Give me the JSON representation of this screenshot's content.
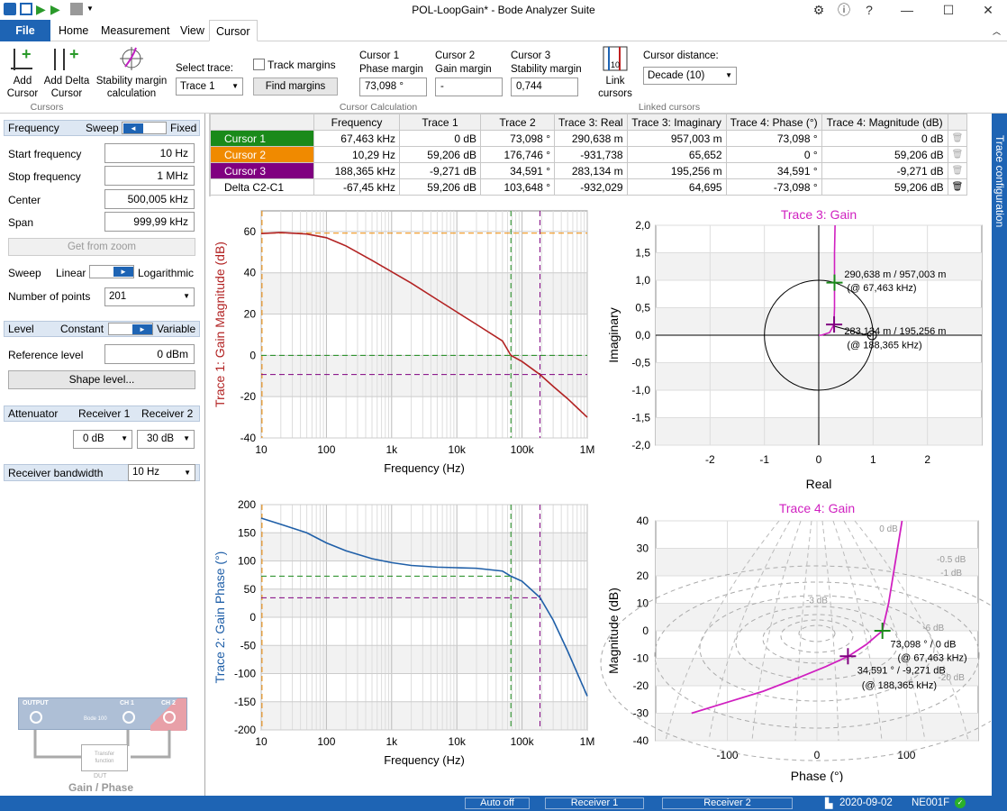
{
  "window": {
    "title": "POL-LoopGain* - Bode Analyzer Suite"
  },
  "tabs": [
    "File",
    "Home",
    "Measurement",
    "View",
    "Cursor"
  ],
  "ribbon": {
    "add_cursor": [
      "Add",
      "Cursor"
    ],
    "add_delta_cursor": [
      "Add Delta",
      "Cursor"
    ],
    "stability_margin": [
      "Stability margin",
      "calculation"
    ],
    "cursors_group": "Cursors",
    "select_trace_label": "Select trace:",
    "select_trace_value": "Trace 1",
    "track_margins": "Track margins",
    "find_margins": "Find margins",
    "cursor1_label": [
      "Cursor 1",
      "Phase margin"
    ],
    "cursor1_value": "73,098 °",
    "cursor2_label": [
      "Cursor 2",
      "Gain margin"
    ],
    "cursor2_value": "-",
    "cursor3_label": [
      "Cursor 3",
      "Stability margin"
    ],
    "cursor3_value": "0,744",
    "calc_group": "Cursor Calculation",
    "link_cursors": [
      "Link",
      "cursors"
    ],
    "cursor_distance_label": "Cursor distance:",
    "cursor_distance_value": "Decade (10)",
    "linked_group": "Linked cursors"
  },
  "left": {
    "frequency_head": "Frequency",
    "sweep": "Sweep",
    "fixed": "Fixed",
    "start_label": "Start frequency",
    "start_value": "10 Hz",
    "stop_label": "Stop frequency",
    "stop_value": "1 MHz",
    "center_label": "Center",
    "center_value": "500,005 kHz",
    "span_label": "Span",
    "span_value": "999,99 kHz",
    "get_from_zoom": "Get from zoom",
    "sweep_label": "Sweep",
    "linear": "Linear",
    "logarithmic": "Logarithmic",
    "points_label": "Number of points",
    "points_value": "201",
    "level_head": "Level",
    "constant": "Constant",
    "variable": "Variable",
    "ref_label": "Reference level",
    "ref_value": "0 dBm",
    "shape_level": "Shape level...",
    "attenuator_head": "Attenuator",
    "receiver1": "Receiver 1",
    "receiver2": "Receiver 2",
    "att1_value": "0 dB",
    "att2_value": "30 dB",
    "rbw_label": "Receiver bandwidth",
    "rbw_value": "10 Hz",
    "diagram": {
      "output": "OUTPUT",
      "ch1": "CH 1",
      "ch2": "CH 2",
      "device": "Bode 100",
      "dut_line1": "Transfer",
      "dut_line2": "function",
      "dut": "DUT",
      "caption": "Gain / Phase"
    }
  },
  "cursor_table": {
    "headers": [
      "",
      "Frequency",
      "Trace 1",
      "Trace 2",
      "Trace 3: Real",
      "Trace 3: Imaginary",
      "Trace 4: Phase (°)",
      "Trace 4: Magnitude (dB)"
    ],
    "rows": [
      {
        "name": "Cursor 1",
        "color": "#1a8a1a",
        "cells": [
          "67,463 kHz",
          "0 dB",
          "73,098 °",
          "290,638 m",
          "957,003 m",
          "73,098 °",
          "0 dB"
        ]
      },
      {
        "name": "Cursor 2",
        "color": "#f08a00",
        "cells": [
          "10,29 Hz",
          "59,206 dB",
          "176,746 °",
          "-931,738",
          "65,652",
          "0 °",
          "59,206 dB"
        ]
      },
      {
        "name": "Cursor 3",
        "color": "#800080",
        "cells": [
          "188,365 kHz",
          "-9,271 dB",
          "34,591 °",
          "283,134 m",
          "195,256 m",
          "34,591 °",
          "-9,271 dB"
        ]
      },
      {
        "name": "Delta C2-C1",
        "color": "",
        "cells": [
          "-67,45 kHz",
          "59,206 dB",
          "103,648 °",
          "-932,029",
          "64,695",
          "-73,098 °",
          "59,206 dB"
        ]
      }
    ]
  },
  "trace_config": "Trace configuration",
  "colors": {
    "accent": "#1e64b4",
    "trace1": "#b22222",
    "trace2": "#1f5fa8",
    "trace34": "#d020c0",
    "cursor1": "#1a8a1a",
    "cursor2": "#f08a00",
    "cursor3": "#800080"
  },
  "chart_data": [
    {
      "type": "line",
      "title": "",
      "xlabel": "Frequency (Hz)",
      "ylabel": "Trace 1: Gain Magnitude (dB)",
      "xscale": "log",
      "xlim": [
        10,
        1000000
      ],
      "ylim": [
        -40,
        70
      ],
      "xticks": [
        "10",
        "100",
        "1k",
        "10k",
        "100k",
        "1M"
      ],
      "yticks": [
        60,
        40,
        20,
        0,
        -20,
        -40
      ],
      "series": [
        {
          "x": [
            10,
            20,
            50,
            100,
            200,
            500,
            1000,
            2000,
            5000,
            10000,
            20000,
            50000,
            67463,
            100000,
            188365,
            300000,
            500000,
            1000000
          ],
          "y": [
            59,
            59.5,
            58.8,
            57,
            53,
            46,
            40.5,
            35,
            27,
            21,
            15,
            7,
            0,
            -3,
            -9.3,
            -15,
            -21,
            -30
          ]
        }
      ]
    },
    {
      "type": "line",
      "title": "",
      "xlabel": "Frequency (Hz)",
      "ylabel": "Trace 2: Gain Phase (°)",
      "xscale": "log",
      "xlim": [
        10,
        1000000
      ],
      "ylim": [
        -200,
        200
      ],
      "xticks": [
        "10",
        "100",
        "1k",
        "10k",
        "100k",
        "1M"
      ],
      "yticks": [
        200,
        150,
        100,
        50,
        0,
        -50,
        -100,
        -150,
        -200
      ],
      "series": [
        {
          "x": [
            10,
            20,
            50,
            100,
            200,
            500,
            1000,
            2000,
            5000,
            10000,
            20000,
            50000,
            67463,
            100000,
            188365,
            300000,
            500000,
            1000000
          ],
          "y": [
            176,
            165,
            150,
            132,
            118,
            104,
            97,
            92,
            89,
            88,
            87,
            82,
            73,
            64,
            35,
            -5,
            -60,
            -140
          ]
        }
      ]
    },
    {
      "type": "line",
      "title": "Trace 3: Gain",
      "xlabel": "Real",
      "ylabel": "Imaginary",
      "xlim": [
        -3,
        3
      ],
      "ylim": [
        -2,
        2
      ],
      "xticks": [
        -2,
        -1,
        0,
        1,
        2
      ],
      "yticks": [
        2,
        1.5,
        1,
        0.5,
        0,
        -0.5,
        -1,
        -1.5,
        -2
      ],
      "series": [
        {
          "x": [
            0.3,
            0.29,
            0.29,
            0.29,
            0.28,
            0.2,
            0.05,
            0.0,
            0.05
          ],
          "y": [
            2,
            1.5,
            0.957,
            0.5,
            0.195,
            0.05,
            0.0,
            0.0,
            0.0
          ]
        }
      ],
      "annotations": [
        "290,638 m / 957,003 m",
        "(@ 67,463 kHz)",
        "283,134 m / 195,256 m",
        "(@ 188,365 kHz)"
      ]
    },
    {
      "type": "line",
      "title": "Trace 4: Gain",
      "xlabel": "Phase (°)",
      "ylabel": "Magnitude (dB)",
      "xlim": [
        -180,
        180
      ],
      "ylim": [
        -40,
        40
      ],
      "xticks": [
        -100,
        0,
        100
      ],
      "yticks": [
        40,
        30,
        20,
        10,
        0,
        -10,
        -20,
        -30,
        -40
      ],
      "series": [
        {
          "x": [
            -140,
            -100,
            -60,
            -20,
            10,
            35,
            55,
            73,
            80,
            85,
            90,
            95
          ],
          "y": [
            -30,
            -26,
            -22,
            -17,
            -13,
            -9.3,
            -5,
            0,
            10,
            20,
            30,
            40
          ]
        }
      ],
      "contour_labels": [
        "0 dB",
        "-0.5 dB",
        "-1 dB",
        "-3 dB",
        "-6 dB",
        "-20 dB"
      ],
      "annotations": [
        "73,098 ° / 0 dB",
        "(@ 67,463 kHz)",
        "34,591 ° / -9,271 dB",
        "(@ 188,365 kHz)"
      ]
    }
  ],
  "status": {
    "auto": "Auto off",
    "r1": "Receiver 1",
    "r2": "Receiver 2",
    "date": "2020-09-02",
    "device": "NE001F"
  }
}
